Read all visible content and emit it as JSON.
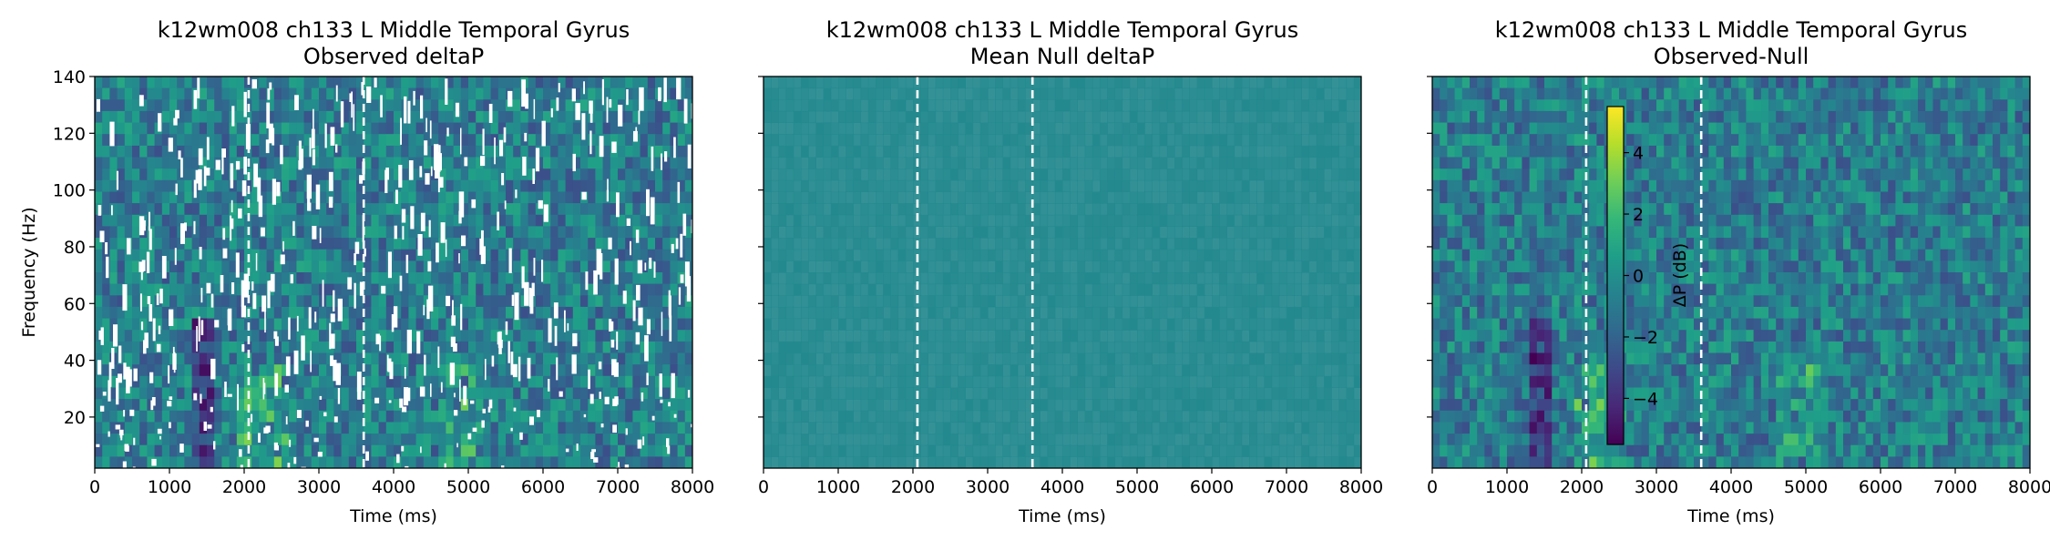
{
  "chart_data": [
    {
      "type": "heatmap",
      "title": "k12wm008 ch133 L Middle Temporal Gyrus",
      "subtitle": "Observed deltaP",
      "xlabel": "Time (ms)",
      "ylabel": "Frequency (Hz)",
      "xlim": [
        0,
        8000
      ],
      "ylim": [
        2,
        140
      ],
      "xticks": [
        0,
        1000,
        2000,
        3000,
        4000,
        5000,
        6000,
        7000,
        8000
      ],
      "yticks": [
        20,
        40,
        60,
        80,
        100,
        120,
        140
      ],
      "event_lines_ms": [
        2060,
        3600
      ],
      "colormap": "viridis",
      "masked_regions": "white",
      "show_yticklabels": true
    },
    {
      "type": "heatmap",
      "title": "k12wm008 ch133 L Middle Temporal Gyrus",
      "subtitle": "Mean Null deltaP",
      "xlabel": "Time (ms)",
      "ylabel": "",
      "xlim": [
        0,
        8000
      ],
      "ylim": [
        2,
        140
      ],
      "xticks": [
        0,
        1000,
        2000,
        3000,
        4000,
        5000,
        6000,
        7000,
        8000
      ],
      "yticks": [
        20,
        40,
        60,
        80,
        100,
        120,
        140
      ],
      "event_lines_ms": [
        2060,
        3600
      ],
      "colormap": "viridis",
      "show_yticklabels": false
    },
    {
      "type": "heatmap",
      "title": "k12wm008 ch133 L Middle Temporal Gyrus",
      "subtitle": "Observed-Null",
      "xlabel": "Time (ms)",
      "ylabel": "",
      "xlim": [
        0,
        8000
      ],
      "ylim": [
        2,
        140
      ],
      "xticks": [
        0,
        1000,
        2000,
        3000,
        4000,
        5000,
        6000,
        7000,
        8000
      ],
      "yticks": [
        20,
        40,
        60,
        80,
        100,
        120,
        140
      ],
      "event_lines_ms": [
        2060,
        3600
      ],
      "colormap": "viridis",
      "show_yticklabels": false,
      "colorbar": {
        "label": "ΔP (dB)",
        "range": [
          -5.5,
          5.5
        ],
        "ticks": [
          4,
          2,
          0,
          -2,
          -4
        ],
        "tick_labels": [
          "4",
          "2",
          "0",
          "−2",
          "−4"
        ]
      }
    }
  ],
  "colors": {
    "viridis_stops": [
      "#440154",
      "#482878",
      "#3e4989",
      "#31688e",
      "#26828e",
      "#1f9e89",
      "#35b779",
      "#6ece58",
      "#b5de2b",
      "#fde725"
    ],
    "mean_null_fill": "#23898e",
    "event_line": "#ffffff",
    "mask": "#ffffff"
  }
}
